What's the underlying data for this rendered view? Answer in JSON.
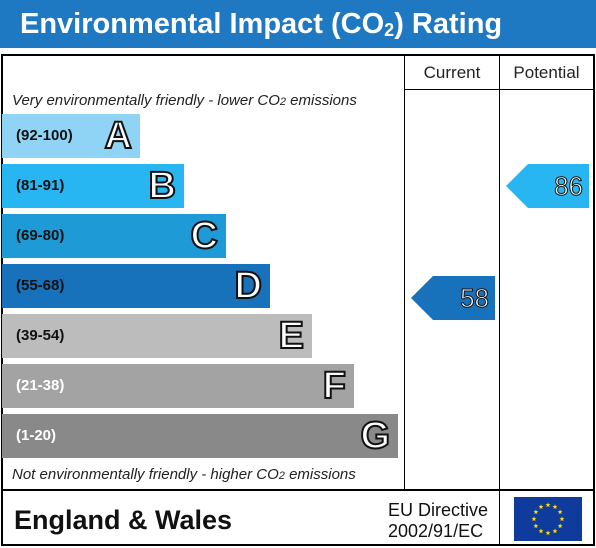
{
  "title": {
    "main": "Environmental Impact (CO",
    "sub": "2",
    "end": ") Rating"
  },
  "columns": {
    "current": "Current",
    "potential": "Potential"
  },
  "notes": {
    "top": "Very environmentally friendly - lower CO",
    "top_sub": "2",
    "top_end": " emissions",
    "bottom": "Not environmentally friendly - higher CO",
    "bottom_sub": "2",
    "bottom_end": " emissions"
  },
  "bands": [
    {
      "range": "(92-100)",
      "letter": "A",
      "color": "#8fd4f4"
    },
    {
      "range": "(81-91)",
      "letter": "B",
      "color": "#27b6f2"
    },
    {
      "range": "(69-80)",
      "letter": "C",
      "color": "#1e9ad6"
    },
    {
      "range": "(55-68)",
      "letter": "D",
      "color": "#1872bb"
    },
    {
      "range": "(39-54)",
      "letter": "E",
      "color": "#bcbcbc"
    },
    {
      "range": "(21-38)",
      "letter": "F",
      "color": "#a3a3a3"
    },
    {
      "range": "(1-20)",
      "letter": "G",
      "color": "#898989"
    }
  ],
  "ratings": {
    "current": {
      "value": "58",
      "band": "D",
      "color": "#1872bb"
    },
    "potential": {
      "value": "86",
      "band": "B",
      "color": "#27b6f2"
    }
  },
  "footer": {
    "country": "England & Wales",
    "directive_line1": "EU Directive",
    "directive_line2": "2002/91/EC"
  },
  "colors": {
    "title_bar": "#1e78c2",
    "eu_flag_blue": "#0f3c9c",
    "eu_flag_stars": "#ffdd00"
  },
  "icons": {
    "eu_flag": "eu-flag-icon"
  }
}
